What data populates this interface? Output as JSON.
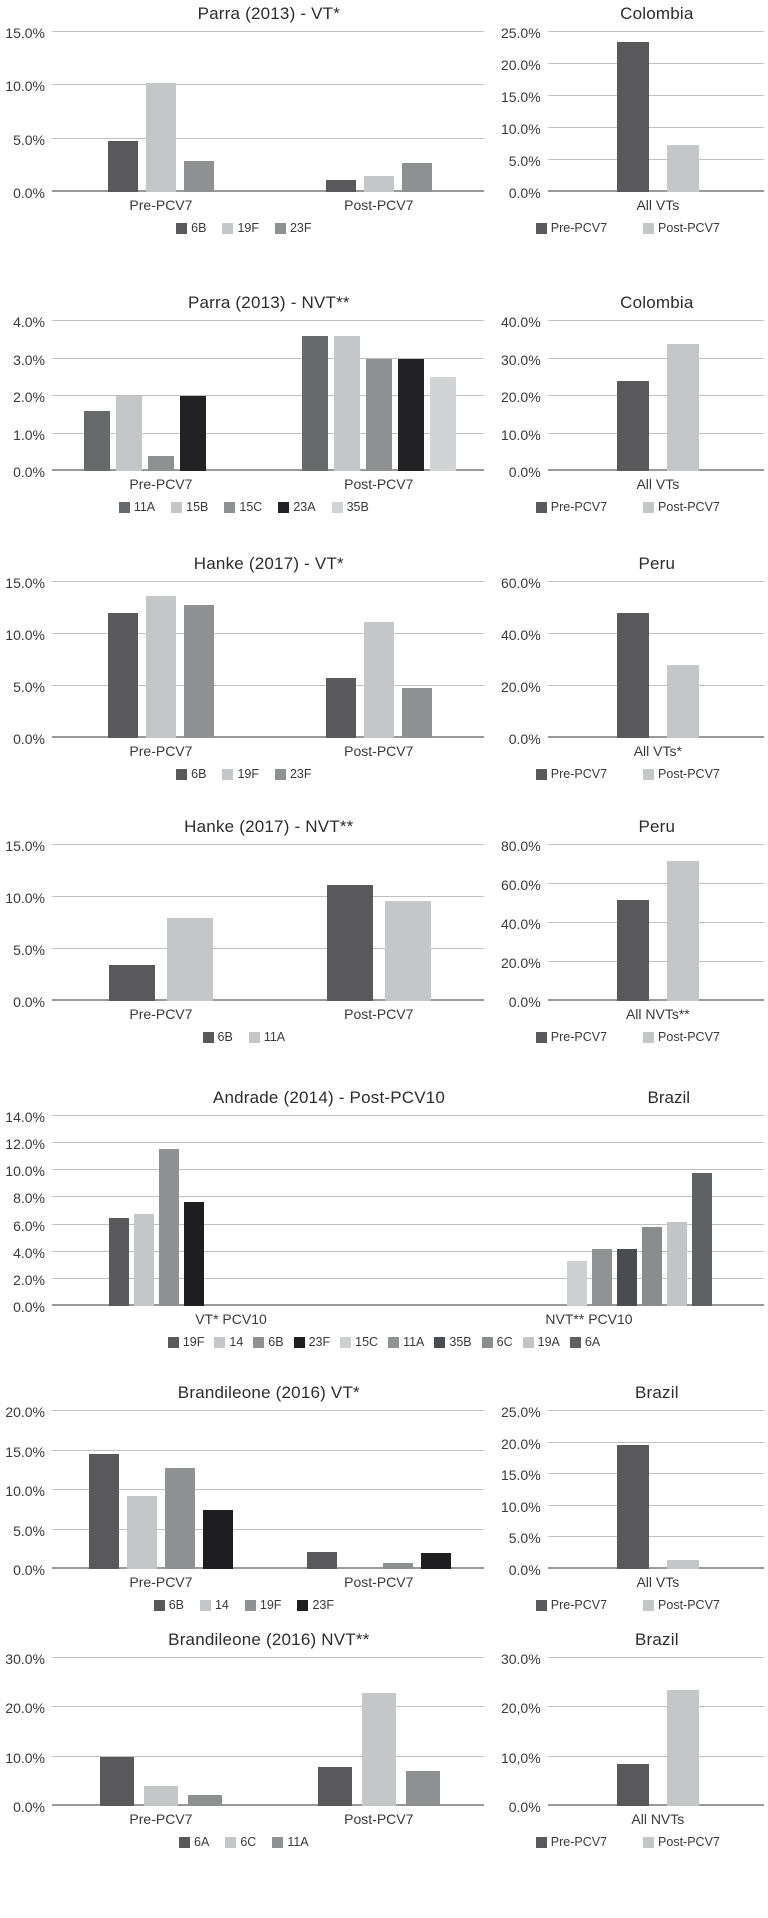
{
  "chart_data": [
    {
      "main": {
        "type": "bar",
        "title": "Parra (2013) - VT*",
        "ylabel": "",
        "ymax": 15,
        "grid": true,
        "yticks": [
          {
            "v": 0,
            "label": "0.0%"
          },
          {
            "v": 5,
            "label": "5.0%"
          },
          {
            "v": 10,
            "label": "10.0%"
          },
          {
            "v": 15,
            "label": "15.0%"
          }
        ],
        "groups": [
          {
            "label": "Pre-PCV7",
            "bars": [
              {
                "name": "6B",
                "value": 4.8
              },
              {
                "name": "19F",
                "value": 10.2
              },
              {
                "name": "23F",
                "value": 2.9
              }
            ]
          },
          {
            "label": "Post-PCV7",
            "bars": [
              {
                "name": "6B",
                "value": 1.1
              },
              {
                "name": "19F",
                "value": 1.5
              },
              {
                "name": "23F",
                "value": 2.7
              }
            ]
          }
        ],
        "palette": {
          "6B": "#59595b",
          "19F": "#c5c6c7",
          "23F": "#8e9092"
        },
        "legend": [
          "6B",
          "19F",
          "23F"
        ]
      },
      "side": {
        "type": "bar",
        "title": "Colombia",
        "ymax": 25,
        "grid": true,
        "yticks": [
          {
            "v": 0,
            "label": "0.0%"
          },
          {
            "v": 5,
            "label": "5.0%"
          },
          {
            "v": 10,
            "label": "10.0%"
          },
          {
            "v": 15,
            "label": "15.0%"
          },
          {
            "v": 20,
            "label": "20.0%"
          },
          {
            "v": 25,
            "label": "25.0%"
          }
        ],
        "groups": [
          {
            "label": "All VTs",
            "bars": [
              {
                "name": "Pre-PCV7",
                "value": 23.5
              },
              {
                "name": "Post-PCV7",
                "value": 7.3
              }
            ]
          }
        ],
        "palette": {
          "Pre-PCV7": "#59595b",
          "Post-PCV7": "#c5c6c7"
        },
        "legend": [
          "Pre-PCV7",
          "Post-PCV7"
        ]
      }
    },
    {
      "main": {
        "type": "bar",
        "title": "Parra (2013) - NVT**",
        "ymax": 4,
        "grid": true,
        "yticks": [
          {
            "v": 0,
            "label": "0.0%"
          },
          {
            "v": 1,
            "label": "1.0%"
          },
          {
            "v": 2,
            "label": "2.0%"
          },
          {
            "v": 3,
            "label": "3.0%"
          },
          {
            "v": 4,
            "label": "4.0%"
          }
        ],
        "groups": [
          {
            "label": "Pre-PCV7",
            "bars": [
              {
                "name": "11A",
                "value": 1.6
              },
              {
                "name": "15B",
                "value": 2.0
              },
              {
                "name": "15C",
                "value": 0.4
              },
              {
                "name": "23A",
                "value": 2.0
              },
              {
                "name": "35B",
                "value": 0
              }
            ]
          },
          {
            "label": "Post-PCV7",
            "bars": [
              {
                "name": "11A",
                "value": 3.6
              },
              {
                "name": "15B",
                "value": 3.6
              },
              {
                "name": "15C",
                "value": 3.0
              },
              {
                "name": "23A",
                "value": 3.0
              },
              {
                "name": "35B",
                "value": 2.5
              }
            ]
          }
        ],
        "palette": {
          "11A": "#68696b",
          "15B": "#c5c6c7",
          "15C": "#8e9092",
          "23A": "#222224",
          "35B": "#d2d3d4"
        },
        "legend": [
          "11A",
          "15B",
          "15C",
          "23A",
          "35B"
        ]
      },
      "side": {
        "type": "bar",
        "title": "Colombia",
        "ymax": 40,
        "grid": true,
        "yticks": [
          {
            "v": 0,
            "label": "0.0%"
          },
          {
            "v": 10,
            "label": "10.0%"
          },
          {
            "v": 20,
            "label": "20.0%"
          },
          {
            "v": 30,
            "label": "30.0%"
          },
          {
            "v": 40,
            "label": "40.0%"
          }
        ],
        "groups": [
          {
            "label": "All VTs",
            "bars": [
              {
                "name": "Pre-PCV7",
                "value": 24
              },
              {
                "name": "Post-PCV7",
                "value": 34
              }
            ]
          }
        ],
        "palette": {
          "Pre-PCV7": "#59595b",
          "Post-PCV7": "#c5c6c7"
        },
        "legend": [
          "Pre-PCV7",
          "Post-PCV7"
        ]
      }
    },
    {
      "main": {
        "type": "bar",
        "title": "Hanke (2017) - VT*",
        "ymax": 15,
        "grid": true,
        "yticks": [
          {
            "v": 0,
            "label": "0.0%"
          },
          {
            "v": 5,
            "label": "5.0%"
          },
          {
            "v": 10,
            "label": "10.0%"
          },
          {
            "v": 15,
            "label": "15.0%"
          }
        ],
        "groups": [
          {
            "label": "Pre-PCV7",
            "bars": [
              {
                "name": "6B",
                "value": 12.0
              },
              {
                "name": "19F",
                "value": 13.7
              },
              {
                "name": "23F",
                "value": 12.8
              }
            ]
          },
          {
            "label": "Post-PCV7",
            "bars": [
              {
                "name": "6B",
                "value": 5.8
              },
              {
                "name": "19F",
                "value": 11.2
              },
              {
                "name": "23F",
                "value": 4.8
              }
            ]
          }
        ],
        "palette": {
          "6B": "#59595b",
          "19F": "#c5c6c7",
          "23F": "#8e9092"
        },
        "legend": [
          "6B",
          "19F",
          "23F"
        ]
      },
      "side": {
        "type": "bar",
        "title": "Peru",
        "ymax": 60,
        "grid": true,
        "yticks": [
          {
            "v": 0,
            "label": "0.0%"
          },
          {
            "v": 20,
            "label": "20.0%"
          },
          {
            "v": 40,
            "label": "40.0%"
          },
          {
            "v": 60,
            "label": "60.0%"
          }
        ],
        "groups": [
          {
            "label": "All VTs*",
            "bars": [
              {
                "name": "Pre-PCV7",
                "value": 48
              },
              {
                "name": "Post-PCV7",
                "value": 28
              }
            ]
          }
        ],
        "palette": {
          "Pre-PCV7": "#59595b",
          "Post-PCV7": "#c5c6c7"
        },
        "legend": [
          "Pre-PCV7",
          "Post-PCV7"
        ]
      }
    },
    {
      "main": {
        "type": "bar",
        "title": "Hanke (2017) - NVT**",
        "ymax": 15,
        "grid": true,
        "yticks": [
          {
            "v": 0,
            "label": "0.0%"
          },
          {
            "v": 5,
            "label": "5.0%"
          },
          {
            "v": 10,
            "label": "10.0%"
          },
          {
            "v": 15,
            "label": "15.0%"
          }
        ],
        "groups": [
          {
            "label": "Pre-PCV7",
            "bars": [
              {
                "name": "6B",
                "value": 3.5
              },
              {
                "name": "11A",
                "value": 8.0
              }
            ]
          },
          {
            "label": "Post-PCV7",
            "bars": [
              {
                "name": "6B",
                "value": 11.2
              },
              {
                "name": "11A",
                "value": 9.6
              }
            ]
          }
        ],
        "palette": {
          "6B": "#59595b",
          "11A": "#c5c6c7"
        },
        "legend": [
          "6B",
          "11A"
        ]
      },
      "side": {
        "type": "bar",
        "title": "Peru",
        "ymax": 80,
        "grid": true,
        "yticks": [
          {
            "v": 0,
            "label": "0.0%"
          },
          {
            "v": 20,
            "label": "20.0%"
          },
          {
            "v": 40,
            "label": "40.0%"
          },
          {
            "v": 60,
            "label": "60.0%"
          },
          {
            "v": 80,
            "label": "80.0%"
          }
        ],
        "groups": [
          {
            "label": "All NVTs**",
            "bars": [
              {
                "name": "Pre-PCV7",
                "value": 52
              },
              {
                "name": "Post-PCV7",
                "value": 72
              }
            ]
          }
        ],
        "palette": {
          "Pre-PCV7": "#59595b",
          "Post-PCV7": "#c5c6c7"
        },
        "legend": [
          "Pre-PCV7",
          "Post-PCV7"
        ]
      }
    },
    {
      "main": {
        "type": "bar",
        "title": "Andrade (2014) - Post-PCV10",
        "region": "Brazil",
        "ymax": 14,
        "grid": true,
        "yticks": [
          {
            "v": 0,
            "label": "0.0%"
          },
          {
            "v": 2,
            "label": "2.0%"
          },
          {
            "v": 4,
            "label": "4.0%"
          },
          {
            "v": 6,
            "label": "6.0%"
          },
          {
            "v": 8,
            "label": "8.0%"
          },
          {
            "v": 10,
            "label": "10.0%"
          },
          {
            "v": 12,
            "label": "12.0%"
          },
          {
            "v": 14,
            "label": "14.0%"
          }
        ],
        "groups": [
          {
            "label": "VT* PCV10",
            "bars": [
              {
                "name": "19F",
                "value": 6.5
              },
              {
                "name": "14",
                "value": 6.8
              },
              {
                "name": "6B",
                "value": 11.6
              },
              {
                "name": "23F",
                "value": 7.7
              },
              {
                "name": "15C",
                "value": 0
              },
              {
                "name": "11A",
                "value": 0
              },
              {
                "name": "35B",
                "value": 0
              },
              {
                "name": "6C",
                "value": 0
              },
              {
                "name": "19A",
                "value": 0
              },
              {
                "name": "6A",
                "value": 0
              }
            ]
          },
          {
            "label": "NVT** PCV10",
            "bars": [
              {
                "name": "19F",
                "value": 0
              },
              {
                "name": "14",
                "value": 0
              },
              {
                "name": "6B",
                "value": 0
              },
              {
                "name": "23F",
                "value": 0
              },
              {
                "name": "15C",
                "value": 3.3
              },
              {
                "name": "11A",
                "value": 4.2
              },
              {
                "name": "35B",
                "value": 4.2
              },
              {
                "name": "6C",
                "value": 5.8
              },
              {
                "name": "19A",
                "value": 6.2
              },
              {
                "name": "6A",
                "value": 9.8
              }
            ]
          }
        ],
        "palette": {
          "19F": "#59595b",
          "14": "#c5c6c7",
          "6B": "#8e9092",
          "23F": "#1e1e20",
          "15C": "#cdcfd0",
          "11A": "#909294",
          "35B": "#4b4b52",
          "6C": "#8a8c8e",
          "19A": "#c2c4c6",
          "6A": "#5f6062"
        },
        "legend": [
          "19F",
          "14",
          "6B",
          "23F",
          "15C",
          "11A",
          "35B",
          "6C",
          "19A",
          "6A"
        ]
      },
      "side": null
    },
    {
      "main": {
        "type": "bar",
        "title": "Brandileone (2016) VT*",
        "ymax": 20,
        "grid": true,
        "yticks": [
          {
            "v": 0,
            "label": "0.0%"
          },
          {
            "v": 5,
            "label": "5.0%"
          },
          {
            "v": 10,
            "label": "10.0%"
          },
          {
            "v": 15,
            "label": "15.0%"
          },
          {
            "v": 20,
            "label": "20.0%"
          }
        ],
        "groups": [
          {
            "label": "Pre-PCV7",
            "bars": [
              {
                "name": "6B",
                "value": 14.5
              },
              {
                "name": "14",
                "value": 9.3
              },
              {
                "name": "19F",
                "value": 12.8
              },
              {
                "name": "23F",
                "value": 7.5
              }
            ]
          },
          {
            "label": "Post-PCV7",
            "bars": [
              {
                "name": "6B",
                "value": 2.2
              },
              {
                "name": "14",
                "value": 0
              },
              {
                "name": "19F",
                "value": 0.8
              },
              {
                "name": "23F",
                "value": 2.0
              }
            ]
          }
        ],
        "palette": {
          "6B": "#59595b",
          "14": "#c5c6c7",
          "19F": "#8e9092",
          "23F": "#1e1e20"
        },
        "legend": [
          "6B",
          "14",
          "19F",
          "23F"
        ]
      },
      "side": {
        "type": "bar",
        "title": "Brazil",
        "ymax": 25,
        "grid": true,
        "yticks": [
          {
            "v": 0,
            "label": "0.0%"
          },
          {
            "v": 5,
            "label": "5.0%"
          },
          {
            "v": 10,
            "label": "10.0%"
          },
          {
            "v": 15,
            "label": "15.0%"
          },
          {
            "v": 20,
            "label": "20.0%"
          },
          {
            "v": 25,
            "label": "25.0%"
          }
        ],
        "groups": [
          {
            "label": "All VTs",
            "bars": [
              {
                "name": "Pre-PCV7",
                "value": 19.7
              },
              {
                "name": "Post-PCV7",
                "value": 1.5
              }
            ]
          }
        ],
        "palette": {
          "Pre-PCV7": "#59595b",
          "Post-PCV7": "#c5c6c7"
        },
        "legend": [
          "Pre-PCV7",
          "Post-PCV7"
        ]
      }
    },
    {
      "main": {
        "type": "bar",
        "title": "Brandileone (2016) NVT**",
        "ymax": 30,
        "grid": true,
        "yticks": [
          {
            "v": 0,
            "label": "0.0%"
          },
          {
            "v": 10,
            "label": "10.0%"
          },
          {
            "v": 20,
            "label": "20.0%"
          },
          {
            "v": 30,
            "label": "30.0%"
          }
        ],
        "groups": [
          {
            "label": "Pre-PCV7",
            "bars": [
              {
                "name": "6A",
                "value": 10.0
              },
              {
                "name": "6C",
                "value": 4.0
              },
              {
                "name": "11A",
                "value": 2.2
              }
            ]
          },
          {
            "label": "Post-PCV7",
            "bars": [
              {
                "name": "6A",
                "value": 8.0
              },
              {
                "name": "6C",
                "value": 23.0
              },
              {
                "name": "11A",
                "value": 7.0
              }
            ]
          }
        ],
        "palette": {
          "6A": "#59595b",
          "6C": "#c5c6c7",
          "11A": "#8e9092"
        },
        "legend": [
          "6A",
          "6C",
          "11A"
        ]
      },
      "side": {
        "type": "bar",
        "title": "Brazil",
        "ymax": 30,
        "grid": true,
        "yticks": [
          {
            "v": 0,
            "label": "0.0%"
          },
          {
            "v": 10,
            "label": "10,0%"
          },
          {
            "v": 20,
            "label": "20,0%"
          },
          {
            "v": 30,
            "label": "30.0%"
          }
        ],
        "groups": [
          {
            "label": "All NVTs",
            "bars": [
              {
                "name": "Pre-PCV7",
                "value": 8.5
              },
              {
                "name": "Post-PCV7",
                "value": 23.5
              }
            ]
          }
        ],
        "palette": {
          "Pre-PCV7": "#59595b",
          "Post-PCV7": "#c5c6c7"
        },
        "legend": [
          "Pre-PCV7",
          "Post-PCV7"
        ]
      }
    }
  ]
}
